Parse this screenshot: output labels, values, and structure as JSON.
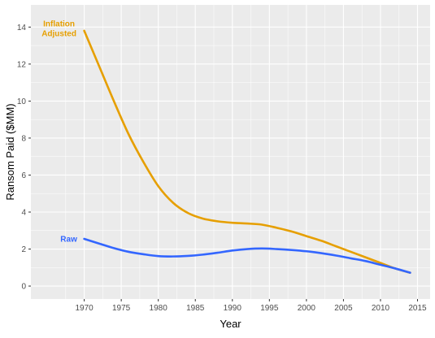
{
  "chart_data": {
    "type": "line",
    "title": "",
    "xlabel": "Year",
    "ylabel": "Ransom Paid ($MM)",
    "xlim": [
      1962.8,
      2016.7
    ],
    "ylim": [
      -0.7,
      15.2
    ],
    "x_ticks": [
      1970,
      1975,
      1980,
      1985,
      1990,
      1995,
      2000,
      2005,
      2010,
      2015
    ],
    "y_ticks": [
      0,
      2,
      4,
      6,
      8,
      10,
      12,
      14
    ],
    "grid": true,
    "legend": "none",
    "series": [
      {
        "name": "Inflation Adjusted",
        "label_lines": [
          "Inflation",
          "Adjusted"
        ],
        "color": "#E69F00",
        "x": [
          1970,
          1972,
          1974,
          1976,
          1978,
          1980,
          1982,
          1984,
          1986,
          1988,
          1990,
          1992,
          1994,
          1996,
          1998,
          2000,
          2002,
          2004,
          2006,
          2008,
          2010,
          2012,
          2014
        ],
        "y": [
          13.8,
          11.9,
          10.0,
          8.2,
          6.7,
          5.4,
          4.5,
          3.95,
          3.65,
          3.5,
          3.42,
          3.38,
          3.32,
          3.15,
          2.95,
          2.7,
          2.45,
          2.15,
          1.85,
          1.55,
          1.25,
          0.95,
          0.72
        ]
      },
      {
        "name": "Raw",
        "label_lines": [
          "Raw"
        ],
        "color": "#3366FF",
        "x": [
          1970,
          1972,
          1974,
          1976,
          1978,
          1980,
          1982,
          1984,
          1986,
          1988,
          1990,
          1992,
          1994,
          1996,
          1998,
          2000,
          2002,
          2004,
          2006,
          2008,
          2010,
          2012,
          2014
        ],
        "y": [
          2.55,
          2.3,
          2.05,
          1.85,
          1.72,
          1.62,
          1.6,
          1.63,
          1.7,
          1.8,
          1.92,
          2.0,
          2.03,
          2.0,
          1.95,
          1.88,
          1.78,
          1.65,
          1.5,
          1.35,
          1.15,
          0.95,
          0.72
        ]
      }
    ]
  }
}
